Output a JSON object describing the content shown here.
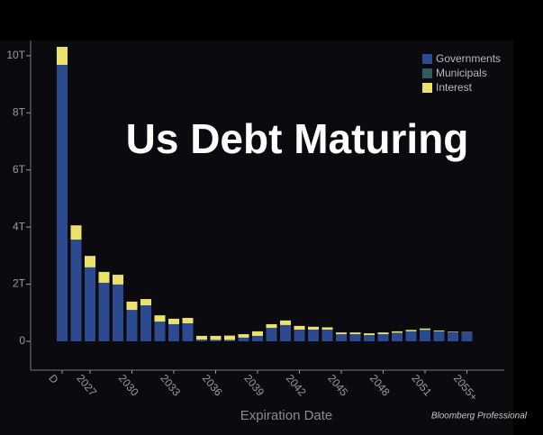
{
  "chart_data": {
    "type": "bar",
    "stacked": true,
    "title": "Us Debt Maturing",
    "x_label": "Expiration Date",
    "source": "Bloomberg Professional",
    "categories": [
      "D",
      null,
      "2027",
      null,
      null,
      "2030",
      null,
      null,
      "2033",
      null,
      null,
      "2036",
      null,
      null,
      "2039",
      null,
      null,
      "2042",
      null,
      null,
      "2045",
      null,
      null,
      "2048",
      null,
      null,
      "2051",
      null,
      null,
      "2055+"
    ],
    "series": [
      {
        "name": "Governments",
        "color": "#2c4a90",
        "values": [
          9.68,
          3.56,
          2.59,
          2.05,
          1.99,
          1.1,
          1.26,
          0.69,
          0.6,
          0.63,
          0.06,
          0.05,
          0.05,
          0.13,
          0.19,
          0.47,
          0.57,
          0.41,
          0.41,
          0.41,
          0.25,
          0.25,
          0.22,
          0.25,
          0.3,
          0.35,
          0.4,
          0.35,
          0.32,
          0.32
        ]
      },
      {
        "name": "Municipals",
        "color": "#2e5c5e",
        "values": [
          0,
          0,
          0,
          0,
          0,
          0,
          0,
          0,
          0,
          0,
          0,
          0,
          0,
          0,
          0,
          0,
          0,
          0,
          0,
          0,
          0,
          0,
          0,
          0,
          0,
          0,
          0,
          0,
          0,
          0
        ]
      },
      {
        "name": "Interest",
        "color": "#ebe26c",
        "values": [
          0.63,
          0.5,
          0.4,
          0.38,
          0.34,
          0.29,
          0.22,
          0.22,
          0.19,
          0.19,
          0.13,
          0.14,
          0.15,
          0.12,
          0.16,
          0.13,
          0.16,
          0.13,
          0.1,
          0.08,
          0.06,
          0.06,
          0.06,
          0.06,
          0.05,
          0.05,
          0.05,
          0.03,
          0.02,
          0.01
        ]
      }
    ],
    "ylim": [
      -1,
      10.5
    ],
    "yticks": [
      0,
      {
        "value": 2,
        "label": "2T"
      },
      {
        "value": 4,
        "label": "4T"
      },
      {
        "value": 6,
        "label": "6T"
      },
      {
        "value": 8,
        "label": "8T"
      },
      {
        "value": 10,
        "label": "10T"
      }
    ],
    "legend": "top-right"
  }
}
